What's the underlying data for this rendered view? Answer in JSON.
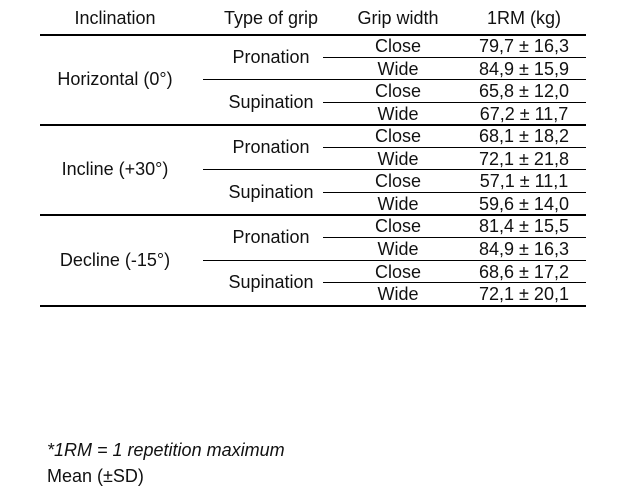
{
  "table": {
    "headers": {
      "inclination": "Inclination",
      "grip_type": "Type of grip",
      "grip_width": "Grip width",
      "one_rm": "1RM (kg)"
    },
    "groups": [
      {
        "inclination": "Horizontal (0°)",
        "grips": [
          {
            "type": "Pronation",
            "rows": [
              {
                "width": "Close",
                "value": "79,7 ± 16,3"
              },
              {
                "width": "Wide",
                "value": "84,9 ± 15,9"
              }
            ]
          },
          {
            "type": "Supination",
            "rows": [
              {
                "width": "Close",
                "value": "65,8 ± 12,0"
              },
              {
                "width": "Wide",
                "value": "67,2 ± 11,7"
              }
            ]
          }
        ]
      },
      {
        "inclination": "Incline (+30°)",
        "grips": [
          {
            "type": "Pronation",
            "rows": [
              {
                "width": "Close",
                "value": "68,1 ± 18,2"
              },
              {
                "width": "Wide",
                "value": "72,1 ± 21,8"
              }
            ]
          },
          {
            "type": "Supination",
            "rows": [
              {
                "width": "Close",
                "value": "57,1 ± 11,1"
              },
              {
                "width": "Wide",
                "value": "59,6 ± 14,0"
              }
            ]
          }
        ]
      },
      {
        "inclination": "Decline (-15°)",
        "grips": [
          {
            "type": "Pronation",
            "rows": [
              {
                "width": "Close",
                "value": "81,4 ± 15,5"
              },
              {
                "width": "Wide",
                "value": "84,9 ± 16,3"
              }
            ]
          },
          {
            "type": "Supination",
            "rows": [
              {
                "width": "Close",
                "value": "68,6 ± 17,2"
              },
              {
                "width": "Wide",
                "value": "72,1 ± 20,1"
              }
            ]
          }
        ]
      }
    ]
  },
  "footnotes": {
    "definition": "*1RM = 1 repetition maximum",
    "stat": "Mean (±SD)"
  }
}
